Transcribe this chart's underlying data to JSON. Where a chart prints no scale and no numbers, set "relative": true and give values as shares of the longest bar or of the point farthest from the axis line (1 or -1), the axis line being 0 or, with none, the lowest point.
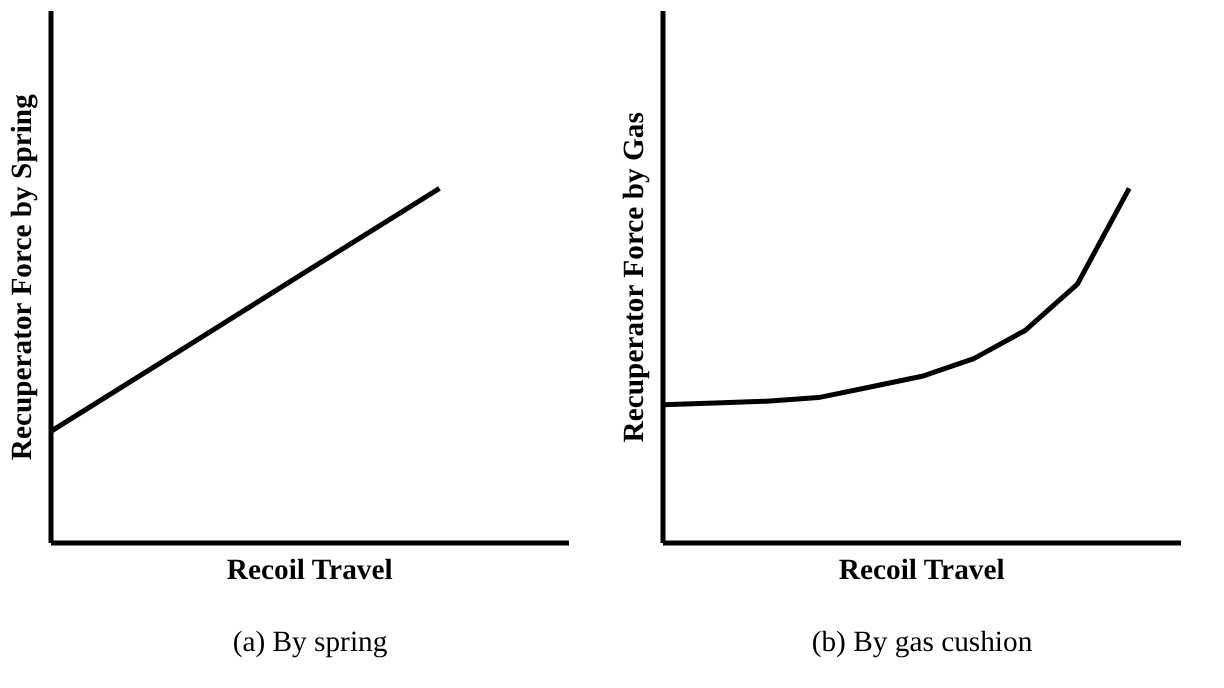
{
  "chart_data": [
    {
      "type": "line",
      "xlabel": "Recoil Travel",
      "ylabel": "Recuperator Force by Spring",
      "relative": true,
      "categories": [
        null,
        null,
        null,
        null,
        null
      ],
      "series": [
        {
          "color": "#000000",
          "values": [
            0.315,
            0.543,
            0.772,
            1.0,
            null
          ]
        }
      ],
      "annotations": [
        "(a) By spring"
      ]
    },
    {
      "type": "line",
      "xlabel": "Recoil Travel",
      "ylabel": "Recuperator Force by Gas",
      "relative": true,
      "categories": [
        null,
        null,
        null,
        null,
        null,
        null,
        null,
        null,
        null,
        null,
        null
      ],
      "series": [
        {
          "color": "#000000",
          "values": [
            0.39,
            0.395,
            0.4,
            0.41,
            0.44,
            0.47,
            0.52,
            0.6,
            0.73,
            1.0,
            null
          ]
        }
      ],
      "annotations": [
        "(b) By gas cushion"
      ]
    }
  ]
}
